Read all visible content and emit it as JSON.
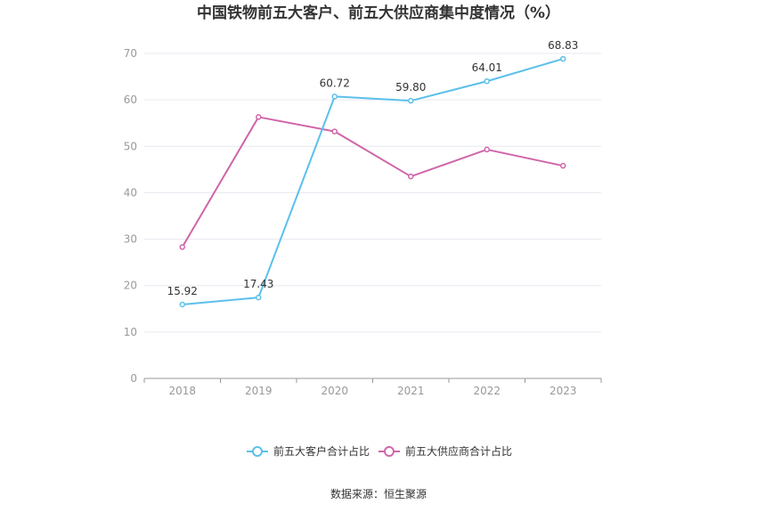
{
  "chart_data": {
    "type": "line",
    "title": "中国铁物前五大客户、前五大供应商集中度情况（%）",
    "xlabel": "",
    "ylabel": "",
    "categories": [
      "2018",
      "2019",
      "2020",
      "2021",
      "2022",
      "2023"
    ],
    "ylim": [
      0,
      70
    ],
    "yticks": [
      0,
      10,
      20,
      30,
      40,
      50,
      60,
      70
    ],
    "grid": true,
    "legend_position": "bottom",
    "series": [
      {
        "name": "前五大客户合计占比",
        "color": "#5bc0eb",
        "values": [
          15.92,
          17.43,
          60.72,
          59.8,
          64.01,
          68.83
        ],
        "labels": [
          "15.92",
          "17.43",
          "60.72",
          "59.80",
          "64.01",
          "68.83"
        ]
      },
      {
        "name": "前五大供应商合计占比",
        "color": "#d066a9",
        "values": [
          28.3,
          56.3,
          53.2,
          43.5,
          49.3,
          45.8
        ],
        "labels": []
      }
    ],
    "source": "数据来源：恒生聚源"
  }
}
